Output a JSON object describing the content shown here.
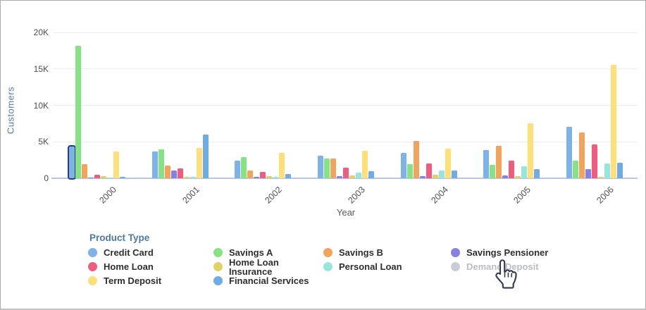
{
  "chart": {
    "y_axis": {
      "title": "Customers",
      "ticks": [
        {
          "label": "0",
          "value": 0
        },
        {
          "label": "5K",
          "value": 5000
        },
        {
          "label": "10K",
          "value": 10000
        },
        {
          "label": "15K",
          "value": 15000
        },
        {
          "label": "20K",
          "value": 20000
        }
      ]
    },
    "x_axis": {
      "title": "Year"
    }
  },
  "chart_data": {
    "type": "bar",
    "title": "",
    "xlabel": "Year",
    "ylabel": "Customers",
    "ylim": [
      0,
      20000
    ],
    "grid": true,
    "categories": [
      "2000",
      "2001",
      "2002",
      "2003",
      "2004",
      "2005",
      "2006"
    ],
    "series": [
      {
        "name": "Credit Card",
        "color": "#7db3e8",
        "values": [
          4400,
          3650,
          2400,
          3050,
          3500,
          3900,
          7100
        ]
      },
      {
        "name": "Savings A",
        "color": "#86e383",
        "values": [
          18200,
          4000,
          2900,
          2700,
          1900,
          1850,
          2450
        ]
      },
      {
        "name": "Savings B",
        "color": "#f2a45c",
        "values": [
          1950,
          1700,
          1100,
          2750,
          5100,
          4450,
          6250
        ]
      },
      {
        "name": "Savings Pensioner",
        "color": "#8781e6",
        "values": [
          50,
          1100,
          200,
          300,
          300,
          400,
          1300
        ]
      },
      {
        "name": "Home Loan",
        "color": "#ef5c7f",
        "values": [
          450,
          1400,
          900,
          1500,
          2000,
          2400,
          4600
        ]
      },
      {
        "name": "Home Loan Insurance",
        "color": "#e0d264",
        "values": [
          250,
          150,
          250,
          400,
          500,
          300,
          150
        ]
      },
      {
        "name": "Personal Loan",
        "color": "#97e5dc",
        "values": [
          30,
          200,
          200,
          750,
          1100,
          1600,
          2000
        ]
      },
      {
        "name": "Demand Deposit",
        "color": "#c9ccd4",
        "values": [],
        "hidden": true
      },
      {
        "name": "Term Deposit",
        "color": "#ffdf78",
        "values": [
          3650,
          4200,
          3500,
          3800,
          4100,
          7500,
          15550
        ]
      },
      {
        "name": "Financial Services",
        "color": "#6fabe5",
        "values": [
          150,
          6000,
          600,
          950,
          1100,
          1300,
          2100
        ]
      }
    ],
    "selected": {
      "series": "Credit Card",
      "category_index": 0,
      "highlight_color": "#21407e"
    },
    "legend_position": "bottom"
  },
  "legend": {
    "title": "Product Type",
    "items": [
      {
        "label": "Credit Card",
        "color": "#7db3e8",
        "enabled": true
      },
      {
        "label": "Savings A",
        "color": "#86e383",
        "enabled": true
      },
      {
        "label": "Savings B",
        "color": "#f2a45c",
        "enabled": true
      },
      {
        "label": "Savings Pensioner",
        "color": "#8781e6",
        "enabled": true
      },
      {
        "label": "Home Loan",
        "color": "#ef5c7f",
        "enabled": true
      },
      {
        "label": "Home Loan Insurance",
        "color": "#e0d264",
        "enabled": true
      },
      {
        "label": "Personal Loan",
        "color": "#97e5dc",
        "enabled": true
      },
      {
        "label": "Demand Deposit",
        "color": "#c9ccd4",
        "enabled": false
      },
      {
        "label": "Term Deposit",
        "color": "#ffdf78",
        "enabled": true
      },
      {
        "label": "Financial Services",
        "color": "#6fabe5",
        "enabled": true
      }
    ]
  }
}
